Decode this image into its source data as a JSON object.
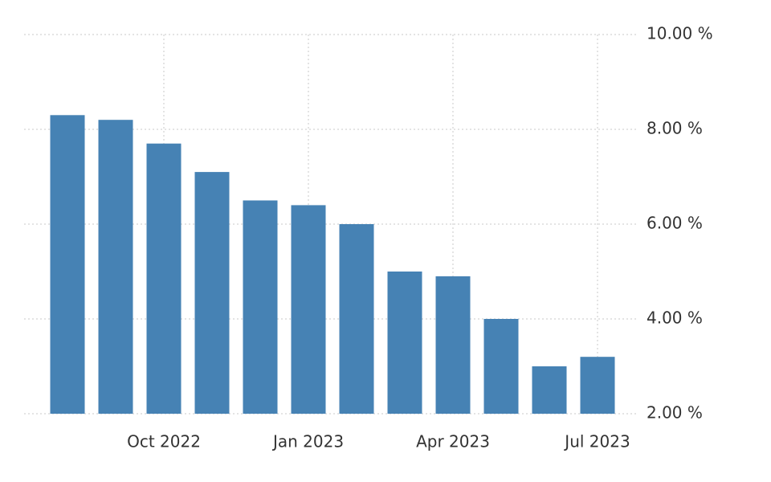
{
  "chart_data": {
    "type": "bar",
    "categories": [
      null,
      null,
      "Oct 2022",
      null,
      null,
      "Jan 2023",
      null,
      null,
      "Apr 2023",
      null,
      null,
      "Jul 2023"
    ],
    "values": [
      8.3,
      8.2,
      7.7,
      7.1,
      6.5,
      6.4,
      6.0,
      5.0,
      4.9,
      4.0,
      3.0,
      3.2
    ],
    "color": "#4682b4",
    "ylim": [
      2,
      10
    ],
    "yticks": [
      {
        "value": 2,
        "label": "2.00 %"
      },
      {
        "value": 4,
        "label": "4.00 %"
      },
      {
        "value": 6,
        "label": "6.00 %"
      },
      {
        "value": 8,
        "label": "8.00 %"
      },
      {
        "value": 10,
        "label": "10.00 %"
      }
    ],
    "grid": true
  }
}
